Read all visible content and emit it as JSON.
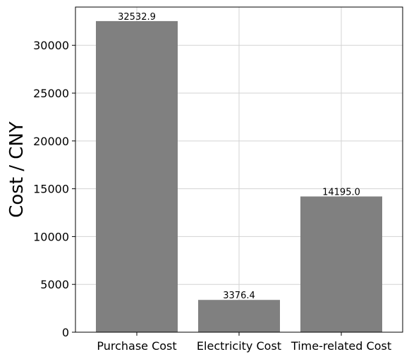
{
  "chart_data": {
    "type": "bar",
    "categories": [
      "Purchase Cost",
      "Electricity Cost",
      "Time-related Cost"
    ],
    "values": [
      32532.9,
      3376.4,
      14195.0
    ],
    "value_labels": [
      "32532.9",
      "3376.4",
      "14195.0"
    ],
    "title": "",
    "xlabel": "",
    "ylabel": "Cost / CNY",
    "ylim": [
      0,
      34000
    ],
    "yticks": [
      0,
      5000,
      10000,
      15000,
      20000,
      25000,
      30000
    ],
    "grid": true,
    "bar_color": "#808080",
    "grid_color": "#d3d3d3"
  }
}
